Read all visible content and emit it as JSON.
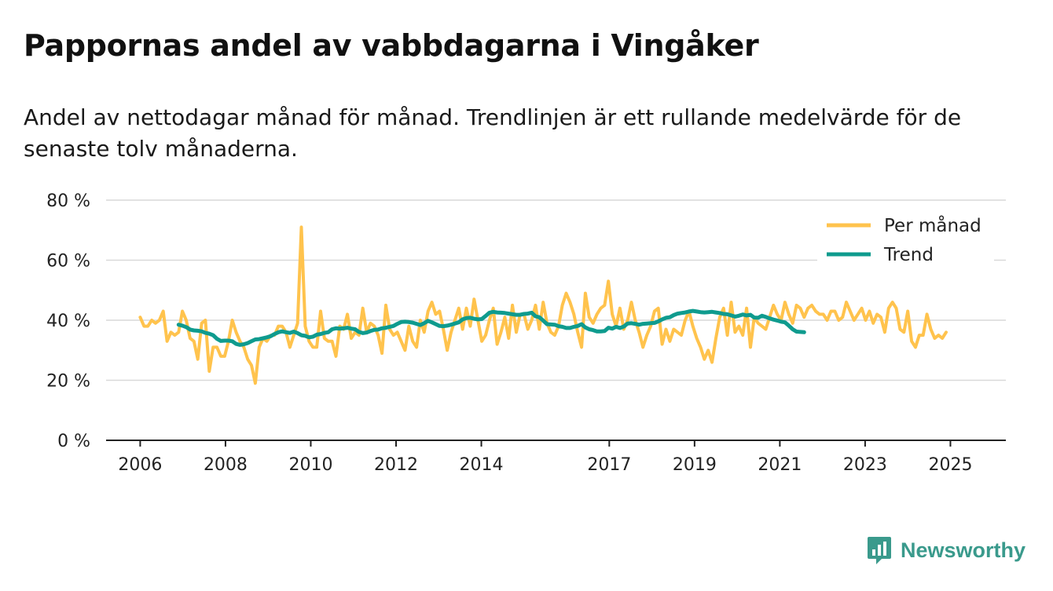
{
  "title": "Pappornas andel av vabbdagarna i Vingåker",
  "subtitle": "Andel av nettodagar månad för månad. Trendlinjen är ett rullande medelvärde för de senaste tolv månaderna.",
  "brand": "Newsworthy",
  "colors": {
    "monthly": "#ffc34d",
    "trend": "#0f9b8e",
    "grid": "#d9d9d9",
    "axis": "#222222",
    "brand": "#3a9a8c"
  },
  "chart_data": {
    "type": "line",
    "title": "Pappornas andel av vabbdagarna i Vingåker",
    "ylabel": "",
    "ylim": [
      0,
      80
    ],
    "yticks": [
      0,
      20,
      40,
      60,
      80
    ],
    "ytick_labels": [
      "0 %",
      "20 %",
      "40 %",
      "60 %",
      "80 %"
    ],
    "xlim": [
      2005.2,
      2026.3
    ],
    "xticks": [
      2006,
      2008,
      2010,
      2012,
      2014,
      2017,
      2019,
      2021,
      2023,
      2025
    ],
    "xtick_labels": [
      "2006",
      "2008",
      "2010",
      "2012",
      "2014",
      "2017",
      "2019",
      "2021",
      "2023",
      "2025"
    ],
    "legend": {
      "position": "top-right"
    },
    "series": [
      {
        "name": "Per månad",
        "color": "#ffc34d",
        "x_start": 2006.0,
        "x_step": 0.09,
        "values": [
          41,
          38,
          38,
          40,
          39,
          40,
          43,
          33,
          36,
          35,
          36,
          43,
          40,
          34,
          33,
          27,
          39,
          40,
          23,
          31,
          31,
          28,
          28,
          33,
          40,
          36,
          33,
          31,
          27,
          25,
          19,
          31,
          34,
          33,
          35,
          35,
          38,
          38,
          36,
          31,
          35,
          39,
          71,
          38,
          33,
          31,
          31,
          43,
          34,
          33,
          33,
          28,
          38,
          37,
          42,
          34,
          36,
          35,
          44,
          36,
          39,
          38,
          35,
          29,
          45,
          37,
          35,
          36,
          33,
          30,
          38,
          33,
          31,
          40,
          36,
          43,
          46,
          42,
          43,
          37,
          30,
          36,
          40,
          44,
          37,
          44,
          38,
          47,
          40,
          33,
          35,
          40,
          44,
          32,
          36,
          41,
          34,
          45,
          36,
          42,
          42,
          37,
          40,
          45,
          37,
          46,
          39,
          36,
          35,
          38,
          45,
          49,
          46,
          42,
          36,
          31,
          49,
          41,
          39,
          42,
          44,
          45,
          53,
          42,
          38,
          44,
          37,
          40,
          46,
          40,
          36,
          31,
          35,
          38,
          43,
          44,
          32,
          37,
          33,
          37,
          36,
          35,
          40,
          43,
          38,
          34,
          31,
          27,
          30,
          26,
          34,
          41,
          44,
          35,
          46,
          36,
          38,
          35,
          44,
          31,
          41,
          39,
          38,
          37,
          41,
          45,
          42,
          40,
          46,
          42,
          39,
          45,
          44,
          41,
          44,
          45,
          43,
          42,
          42,
          40,
          43,
          43,
          40,
          41,
          46,
          43,
          40,
          42,
          44,
          40,
          43,
          39,
          42,
          41,
          36,
          44,
          46,
          44,
          37,
          36,
          43,
          33,
          31,
          35,
          35,
          42,
          37,
          34,
          35,
          34,
          36
        ]
      },
      {
        "name": "Trend",
        "color": "#0f9b8e",
        "x_start": 2006.9,
        "x_step": 0.09,
        "values": [
          38.5,
          38.2,
          37.7,
          36.9,
          36.6,
          36.5,
          36.3,
          35.8,
          35.5,
          35.0,
          33.8,
          33.1,
          33.2,
          33.2,
          33.0,
          32.1,
          31.8,
          32.0,
          32.4,
          33.0,
          33.6,
          33.7,
          34.0,
          34.3,
          34.7,
          35.4,
          36.0,
          36.3,
          36.0,
          35.8,
          36.2,
          35.7,
          35.0,
          34.8,
          34.3,
          34.5,
          35.2,
          35.4,
          35.8,
          36.0,
          37.0,
          37.3,
          37.2,
          37.3,
          37.5,
          37.2,
          37.0,
          36.1,
          35.7,
          35.9,
          36.4,
          36.8,
          36.9,
          37.3,
          37.5,
          37.8,
          38.1,
          38.8,
          39.4,
          39.5,
          39.4,
          39.2,
          38.8,
          38.4,
          39.0,
          39.8,
          39.3,
          38.7,
          38.1,
          38.0,
          38.2,
          38.5,
          38.9,
          39.3,
          40.3,
          40.7,
          40.8,
          40.5,
          40.3,
          40.4,
          41.4,
          42.5,
          42.8,
          42.6,
          42.5,
          42.4,
          42.2,
          42.0,
          41.8,
          41.8,
          42.1,
          42.2,
          42.5,
          41.3,
          41.0,
          39.9,
          38.7,
          38.6,
          38.5,
          38.0,
          37.8,
          37.4,
          37.4,
          37.8,
          38.1,
          38.7,
          37.6,
          37.0,
          36.7,
          36.3,
          36.3,
          36.4,
          37.5,
          37.2,
          37.8,
          37.4,
          37.9,
          38.9,
          39.0,
          38.8,
          38.5,
          38.8,
          38.9,
          39.0,
          39.1,
          39.6,
          40.3,
          40.8,
          41.0,
          41.7,
          42.2,
          42.4,
          42.6,
          42.9,
          43.1,
          42.9,
          42.7,
          42.6,
          42.7,
          42.8,
          42.6,
          42.4,
          42.1,
          42.0,
          41.6,
          41.2,
          41.5,
          41.9,
          41.6,
          41.8,
          40.9,
          40.8,
          41.5,
          41.1,
          40.6,
          40.2,
          39.9,
          39.5,
          39.3,
          38.2,
          37.0,
          36.2,
          36.1,
          36.0
        ]
      }
    ]
  }
}
